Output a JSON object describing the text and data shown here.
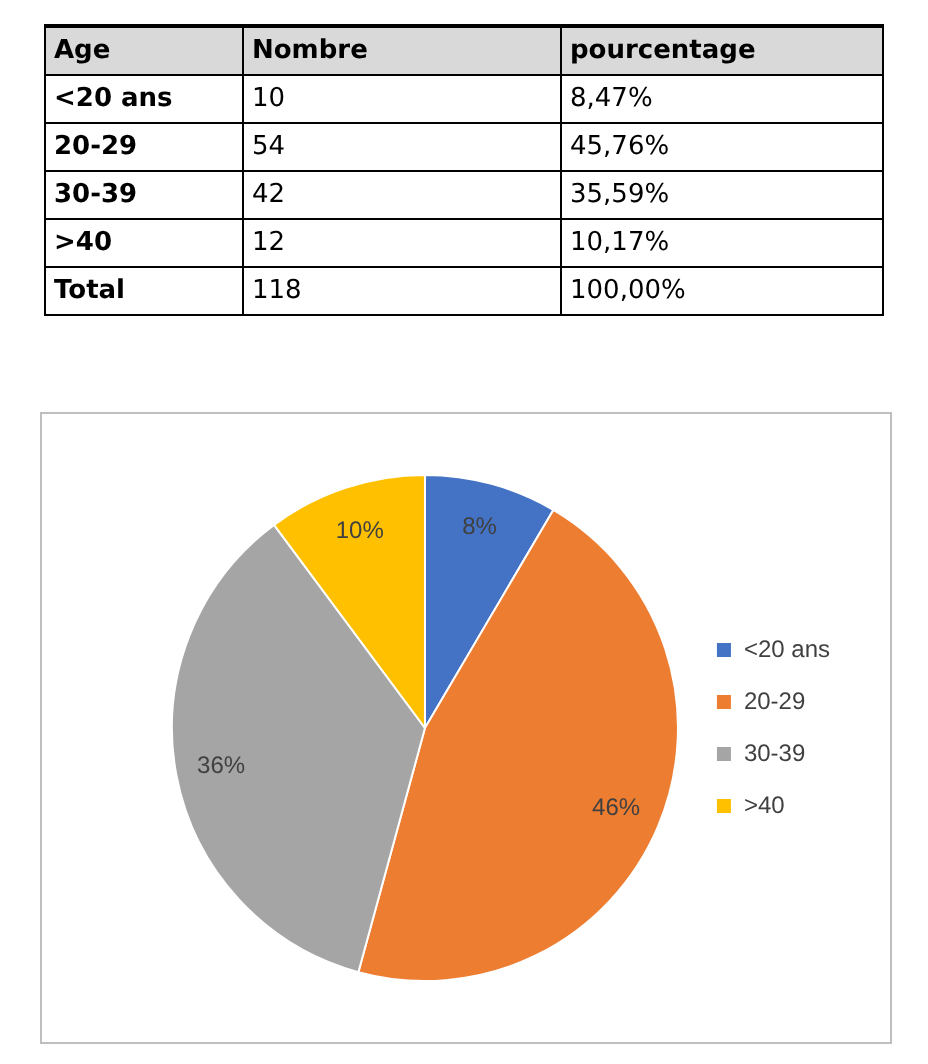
{
  "chart_data": [
    {
      "type": "other",
      "annotations": [
        "Age",
        "Nombre",
        "pourcentage",
        "<20 ans",
        "10",
        "8,47%",
        "20-29",
        "54",
        "45,76%",
        "30-39",
        "42",
        "35,59%",
        ">40",
        "12",
        "10,17%",
        "Total",
        "118",
        "100,00%"
      ]
    },
    {
      "type": "pie",
      "categories": [
        "<20 ans",
        "20-29",
        "30-39",
        ">40"
      ],
      "values": [
        8.47,
        45.76,
        35.59,
        10.17
      ],
      "value_labels": [
        "8%",
        "46%",
        "36%",
        "10%"
      ],
      "colors": [
        "#4472c4",
        "#ed7d31",
        "#a5a5a5",
        "#ffc000"
      ],
      "legend": "right"
    }
  ]
}
